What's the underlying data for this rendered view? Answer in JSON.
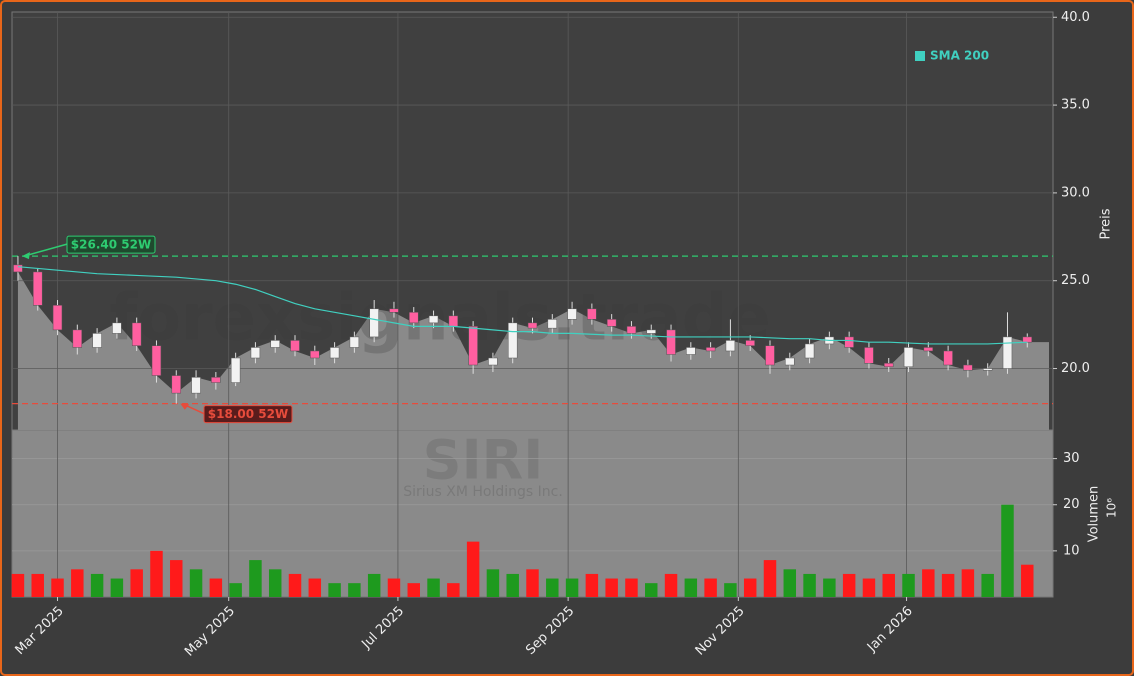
{
  "chart_data": {
    "type": "candlestick",
    "ticker": "SIRI",
    "company": "Sirius XM Holdings Inc.",
    "watermark": "forexsignals.trade",
    "y_label": "Preis",
    "y2_label": "Volumen",
    "y2_multiplier": "10⁶",
    "open": [
      25.9,
      25.5,
      23.6,
      22.2,
      21.2,
      22.0,
      22.6,
      21.3,
      19.6,
      18.6,
      19.5,
      19.2,
      20.6,
      21.2,
      21.6,
      21.0,
      20.6,
      21.2,
      21.8,
      23.4,
      23.2,
      22.6,
      23.0,
      22.4,
      20.2,
      20.6,
      22.6,
      22.3,
      22.8,
      23.4,
      22.8,
      22.4,
      22.0,
      22.2,
      20.8,
      21.2,
      21.0,
      21.6,
      21.3,
      20.2,
      20.6,
      21.4,
      21.8,
      21.2,
      20.3,
      20.1,
      21.2,
      21.0,
      20.2,
      19.9,
      20.0,
      21.8
    ],
    "high": [
      26.4,
      25.7,
      23.9,
      22.5,
      22.3,
      22.9,
      22.9,
      21.6,
      19.9,
      19.9,
      19.8,
      20.9,
      21.5,
      21.9,
      21.9,
      21.3,
      21.5,
      22.1,
      23.9,
      23.8,
      23.5,
      23.3,
      23.3,
      22.7,
      20.9,
      22.9,
      22.9,
      23.1,
      23.8,
      23.7,
      23.1,
      22.7,
      22.5,
      22.5,
      21.5,
      21.5,
      22.8,
      21.9,
      21.6,
      20.9,
      21.7,
      22.1,
      22.1,
      21.5,
      20.6,
      21.5,
      21.5,
      21.3,
      20.5,
      20.3,
      23.2,
      22.0
    ],
    "low": [
      25.0,
      23.3,
      21.9,
      20.8,
      20.9,
      21.7,
      21.0,
      19.2,
      18.0,
      18.3,
      18.8,
      19.0,
      20.3,
      20.9,
      20.7,
      20.2,
      20.3,
      20.9,
      21.5,
      22.9,
      22.3,
      22.3,
      22.1,
      19.7,
      19.8,
      20.3,
      22.0,
      22.0,
      22.5,
      22.5,
      22.1,
      21.7,
      21.7,
      20.4,
      20.5,
      20.6,
      20.7,
      21.0,
      19.7,
      19.9,
      20.3,
      21.1,
      20.9,
      20.0,
      19.8,
      19.8,
      20.7,
      19.9,
      19.5,
      19.6,
      19.7,
      21.2
    ],
    "close": [
      25.5,
      23.6,
      22.2,
      21.2,
      22.0,
      22.6,
      21.3,
      19.6,
      18.6,
      19.5,
      19.2,
      20.6,
      21.2,
      21.6,
      21.0,
      20.6,
      21.2,
      21.8,
      23.4,
      23.2,
      22.6,
      23.0,
      22.4,
      20.2,
      20.6,
      22.6,
      22.3,
      22.8,
      23.4,
      22.8,
      22.4,
      22.0,
      22.2,
      20.8,
      21.2,
      21.0,
      21.6,
      21.3,
      20.2,
      20.6,
      21.4,
      21.8,
      21.2,
      20.3,
      20.1,
      21.2,
      21.0,
      20.2,
      19.9,
      20.0,
      21.8,
      21.5
    ],
    "volume": [
      5,
      5,
      4,
      6,
      5,
      4,
      6,
      10,
      8,
      6,
      4,
      3,
      8,
      6,
      5,
      4,
      3,
      3,
      5,
      4,
      3,
      4,
      3,
      12,
      6,
      5,
      6,
      4,
      4,
      5,
      4,
      4,
      3,
      5,
      4,
      4,
      3,
      4,
      8,
      6,
      5,
      4,
      5,
      4,
      5,
      5,
      6,
      5,
      6,
      5,
      20,
      7
    ],
    "sma": {
      "name": "SMA 200",
      "color": "#40d0c0",
      "values": [
        25.8,
        25.7,
        25.6,
        25.5,
        25.4,
        25.35,
        25.3,
        25.25,
        25.2,
        25.1,
        25.0,
        24.8,
        24.5,
        24.1,
        23.7,
        23.4,
        23.2,
        23.0,
        22.8,
        22.6,
        22.4,
        22.4,
        22.4,
        22.3,
        22.2,
        22.1,
        22.1,
        22.0,
        22.0,
        21.95,
        21.9,
        21.9,
        21.85,
        21.8,
        21.8,
        21.8,
        21.8,
        21.8,
        21.75,
        21.7,
        21.7,
        21.6,
        21.6,
        21.5,
        21.5,
        21.45,
        21.4,
        21.4,
        21.4,
        21.4,
        21.45,
        21.5
      ]
    },
    "up_color": "#f2f2f2",
    "down_color": "#ff5fa0",
    "volume_up_color": "#1e9a1e",
    "volume_down_color": "#ff1a1a",
    "area_color": "#8a8a8a",
    "annotations": [
      {
        "text": "$26.40 52W",
        "value": 26.4,
        "index": 0,
        "color": "#2ecc71"
      },
      {
        "text": "$18.00 52W",
        "value": 18.0,
        "index": 8,
        "color": "#e74c3c"
      }
    ],
    "xlim": [
      -0.3,
      52.3
    ],
    "xticks": [
      {
        "value": 2.0,
        "label": "Mar 2025"
      },
      {
        "value": 10.65,
        "label": "May 2025"
      },
      {
        "value": 19.2,
        "label": "Jul 2025"
      },
      {
        "value": 27.8,
        "label": "Sep 2025"
      },
      {
        "value": 36.4,
        "label": "Nov 2025"
      },
      {
        "value": 44.9,
        "label": "Jan 2026"
      }
    ],
    "ylim": [
      16.5,
      40.3
    ],
    "yticks": [
      {
        "value": 20,
        "label": "20.0"
      },
      {
        "value": 25,
        "label": "25.0"
      },
      {
        "value": 30,
        "label": "30.0"
      },
      {
        "value": 35,
        "label": "35.0"
      },
      {
        "value": 40,
        "label": "40.0"
      }
    ],
    "y2lim": [
      0,
      36.2
    ],
    "y2ticks": [
      10,
      20,
      30
    ],
    "grid": true
  }
}
